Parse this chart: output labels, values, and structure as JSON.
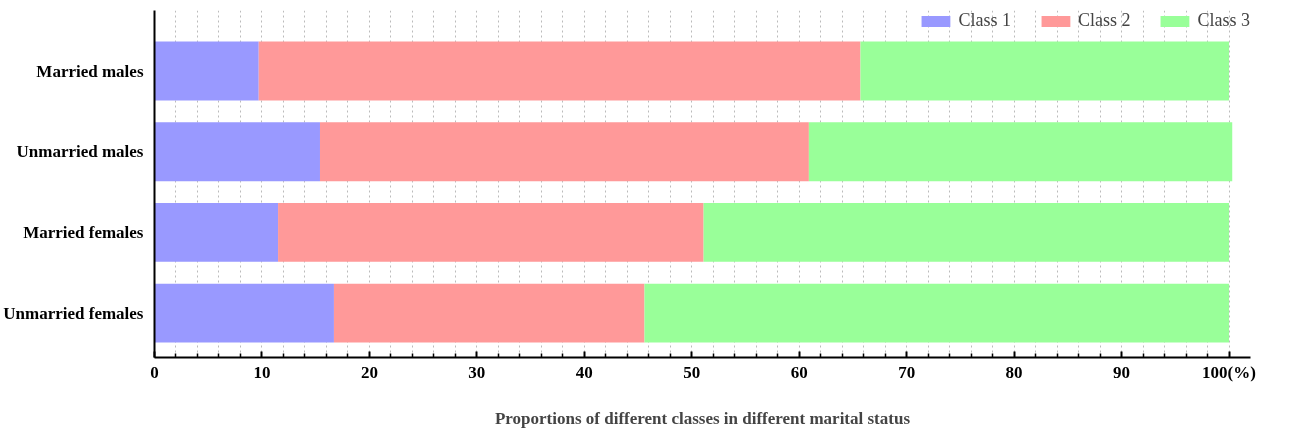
{
  "chart_data": {
    "type": "bar",
    "orientation": "horizontal",
    "stacked": true,
    "xlabel": "Proportions of different classes in different marital status",
    "categories": [
      "Married males",
      "Unmarried males",
      "Married females",
      "Unmarried females"
    ],
    "series": [
      {
        "name": "Class 1",
        "color": "#9999ff",
        "values": [
          9.7,
          15.4,
          11.5,
          16.7
        ]
      },
      {
        "name": "Class 2",
        "color": "#ff9999",
        "values": [
          56.0,
          45.5,
          39.6,
          28.9
        ]
      },
      {
        "name": "Class 3",
        "color": "#99ff99",
        "values": [
          34.3,
          39.4,
          48.9,
          54.4
        ]
      }
    ],
    "xlim": [
      0,
      102
    ],
    "xticks": [
      0,
      10,
      20,
      30,
      40,
      50,
      60,
      70,
      80,
      90,
      {
        "value": 100,
        "label": "100(%)"
      }
    ],
    "grid": "x",
    "legend": "top right"
  }
}
